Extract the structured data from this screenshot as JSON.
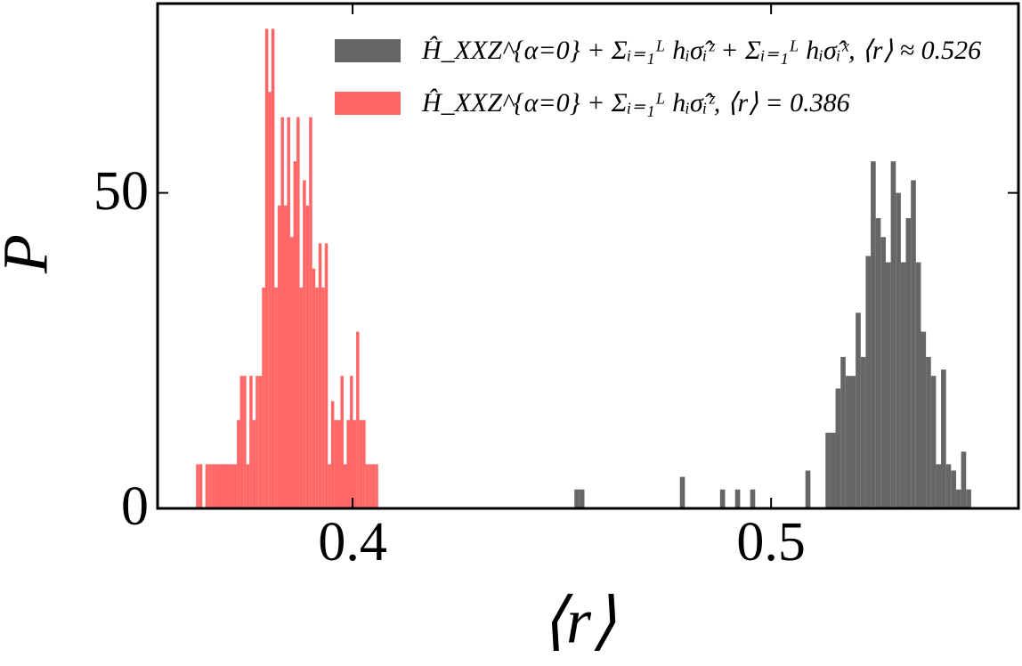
{
  "chart_data": {
    "type": "histogram",
    "xlabel": "⟨r⟩",
    "ylabel": "P",
    "xlim": [
      0.3534,
      0.5591
    ],
    "ylim": [
      0,
      80
    ],
    "xticks": [
      0.4,
      0.5
    ],
    "yticks": [
      0,
      50
    ],
    "legend": "upper right",
    "series": [
      {
        "name": "Ĥ_XXZ^{α=0} + Σᵢ₌₁ᴸ hᵢσ̂ᵢᶻ + Σᵢ₌₁ᴸ hᵢσ̂ᵢˣ,  ⟨r⟩ ≈ 0.526",
        "color": "#666666",
        "bins": [
          0.453,
          0.4542,
          0.4554,
          0.4566,
          0.4578,
          0.459,
          0.4602,
          0.4614,
          0.4626,
          0.4638,
          0.465,
          0.4662,
          0.4674,
          0.4686,
          0.4698,
          0.471,
          0.4722,
          0.4734,
          0.4746,
          0.4758,
          0.477,
          0.4782,
          0.4794,
          0.4806,
          0.4818,
          0.483,
          0.4842,
          0.4854,
          0.4866,
          0.4878,
          0.489,
          0.4902,
          0.4914,
          0.4926,
          0.4938,
          0.495,
          0.4962,
          0.4974,
          0.4986,
          0.4998,
          0.501,
          0.5022,
          0.5034,
          0.5046,
          0.5058,
          0.507,
          0.5082,
          0.5094,
          0.5106,
          0.5118,
          0.513,
          0.5142,
          0.5154,
          0.5166,
          0.5178,
          0.519,
          0.5202,
          0.5214,
          0.5226,
          0.5238,
          0.525,
          0.5262,
          0.5274,
          0.5286,
          0.5298,
          0.531,
          0.5322,
          0.5334,
          0.5346,
          0.5358,
          0.537,
          0.5382,
          0.5394,
          0.5406,
          0.5418,
          0.543,
          0.5442,
          0.5454,
          0.5466,
          0.5478
        ],
        "values": [
          3,
          3,
          0,
          0,
          0,
          0,
          0,
          0,
          0,
          0,
          0,
          0,
          0,
          0,
          0,
          0,
          0,
          0,
          0,
          0,
          0,
          5,
          0,
          0,
          0,
          0,
          0,
          0,
          0,
          3,
          0,
          0,
          3,
          0,
          0,
          3,
          0,
          0,
          0,
          0,
          0,
          0,
          0,
          0,
          0,
          0,
          6,
          0,
          0,
          0,
          12,
          12,
          19,
          24,
          21,
          21,
          31,
          24,
          40,
          55,
          46,
          43,
          39,
          55,
          50,
          39,
          46,
          52,
          39,
          28,
          24,
          21,
          7,
          22,
          7,
          6,
          3,
          9,
          3
        ]
      },
      {
        "name": "Ĥ_XXZ^{α=0} + Σᵢ₌₁ᴸ hᵢσ̂ᵢᶻ,  ⟨r⟩ = 0.386",
        "color": "#ff6666",
        "bins": [
          0.3626,
          0.36335,
          0.3641,
          0.36485,
          0.3656,
          0.36635,
          0.3671,
          0.36785,
          0.3686,
          0.36935,
          0.3701,
          0.37085,
          0.3716,
          0.37235,
          0.3731,
          0.37385,
          0.3746,
          0.37535,
          0.3761,
          0.37685,
          0.3776,
          0.37835,
          0.3791,
          0.37985,
          0.3806,
          0.38135,
          0.3821,
          0.38285,
          0.3836,
          0.38435,
          0.3851,
          0.38585,
          0.3866,
          0.38735,
          0.3881,
          0.38885,
          0.3896,
          0.39035,
          0.3911,
          0.39185,
          0.3926,
          0.39335,
          0.3941,
          0.39485,
          0.3956,
          0.39635,
          0.3971,
          0.39785,
          0.3986,
          0.39935,
          0.4001,
          0.40085,
          0.4016,
          0.40235,
          0.4031,
          0.40385,
          0.4046,
          0.40535,
          0.4061
        ],
        "values": [
          7,
          7,
          0,
          7,
          7,
          7,
          7,
          7,
          7,
          7,
          7,
          7,
          7,
          14,
          21,
          21,
          7,
          21,
          14,
          21,
          21,
          35,
          76,
          66,
          76,
          35,
          48,
          62,
          48,
          62,
          43,
          55,
          62,
          35,
          52,
          48,
          62,
          38,
          35,
          42,
          35,
          42,
          7,
          17,
          14,
          14,
          21,
          7,
          14,
          21,
          14,
          28,
          14,
          14,
          7,
          7,
          7,
          7
        ]
      }
    ]
  }
}
